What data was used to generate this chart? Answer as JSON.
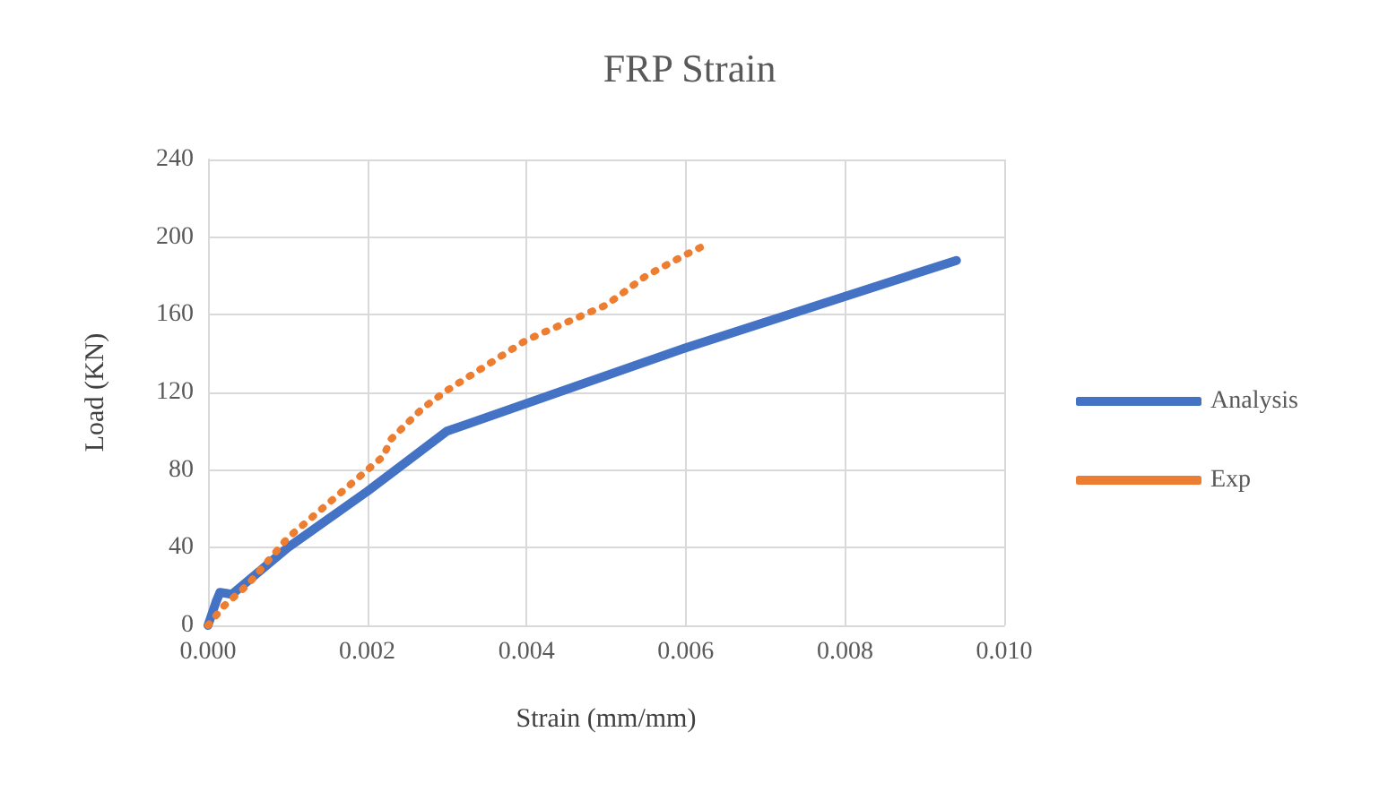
{
  "chart_data": {
    "type": "line",
    "title": "FRP Strain",
    "xlabel": "Strain (mm/mm)",
    "ylabel": "Load (KN)",
    "xlim": [
      0,
      0.01
    ],
    "xticks": [
      {
        "value": 0,
        "label": "0.000"
      },
      {
        "value": 0.002,
        "label": "0.002"
      },
      {
        "value": 0.004,
        "label": "0.004"
      },
      {
        "value": 0.006,
        "label": "0.006"
      },
      {
        "value": 0.008,
        "label": "0.008"
      },
      {
        "value": 0.01,
        "label": "0.010"
      }
    ],
    "ylim": [
      0,
      240
    ],
    "yticks": [
      0,
      40,
      80,
      120,
      160,
      200,
      240
    ],
    "grid": true,
    "legend": "right",
    "marker": "none",
    "series": [
      {
        "name": "Analysis",
        "color": "#4472c4",
        "line_style": "solid",
        "x": [
          0,
          0.0001,
          0.00015,
          0.0003,
          0.001,
          0.002,
          0.003,
          0.006,
          0.0094
        ],
        "values": [
          0,
          12,
          17,
          16,
          40,
          69,
          100,
          143,
          188
        ]
      },
      {
        "name": "Exp",
        "color": "#ed7d31",
        "line_style": "dotted",
        "x": [
          0,
          0.0002,
          0.0005,
          0.001,
          0.002,
          0.0022,
          0.0023,
          0.0027,
          0.003,
          0.004,
          0.005,
          0.0055,
          0.006,
          0.0062
        ],
        "values": [
          0,
          10,
          21,
          45,
          80,
          87,
          96,
          112,
          121,
          147,
          165,
          180,
          191,
          195
        ]
      }
    ]
  }
}
